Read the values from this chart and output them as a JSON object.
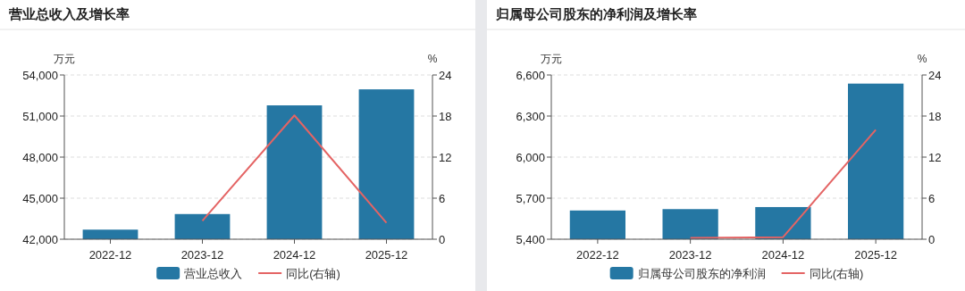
{
  "chart_data": [
    {
      "type": "bar",
      "title": "营业总收入及增长率",
      "ylabel": "万元",
      "y2label": "%",
      "categories": [
        "2022-12",
        "2023-12",
        "2024-12",
        "2025-12"
      ],
      "series": [
        {
          "name": "营业总收入",
          "color": "#2577a3",
          "values": [
            42700,
            43840,
            51780,
            52950
          ]
        },
        {
          "name": "同比(右轴)",
          "type": "line",
          "axis": "y2",
          "color": "#e46464",
          "values": [
            null,
            2.7,
            18.1,
            2.4
          ]
        }
      ],
      "ylim": [
        42000,
        54000
      ],
      "yticks": [
        {
          "value": 42000,
          "label": "42,000"
        },
        {
          "value": 45000,
          "label": "45,000"
        },
        {
          "value": 48000,
          "label": "48,000"
        },
        {
          "value": 51000,
          "label": "51,000"
        },
        {
          "value": 54000,
          "label": "54,000"
        }
      ],
      "y2lim": [
        0,
        24
      ],
      "y2ticks": [
        0,
        6,
        12,
        18,
        24
      ],
      "grid": "y",
      "legend": "bottom"
    },
    {
      "type": "bar",
      "title": "归属母公司股东的净利润及增长率",
      "ylabel": "万元",
      "y2label": "%",
      "categories": [
        "2022-12",
        "2023-12",
        "2024-12",
        "2025-12"
      ],
      "series": [
        {
          "name": "归属母公司股东的净利润",
          "color": "#2577a3",
          "values": [
            5610,
            5620,
            5635,
            6537
          ]
        },
        {
          "name": "同比(右轴)",
          "type": "line",
          "axis": "y2",
          "color": "#e46464",
          "values": [
            null,
            0.2,
            0.3,
            16.0
          ]
        }
      ],
      "ylim": [
        5400,
        6600
      ],
      "yticks": [
        {
          "value": 5400,
          "label": "5,400"
        },
        {
          "value": 5700,
          "label": "5,700"
        },
        {
          "value": 6000,
          "label": "6,000"
        },
        {
          "value": 6300,
          "label": "6,300"
        },
        {
          "value": 6600,
          "label": "6,600"
        }
      ],
      "y2lim": [
        0,
        24
      ],
      "y2ticks": [
        0,
        6,
        12,
        18,
        24
      ],
      "grid": "y",
      "legend": "bottom"
    }
  ]
}
